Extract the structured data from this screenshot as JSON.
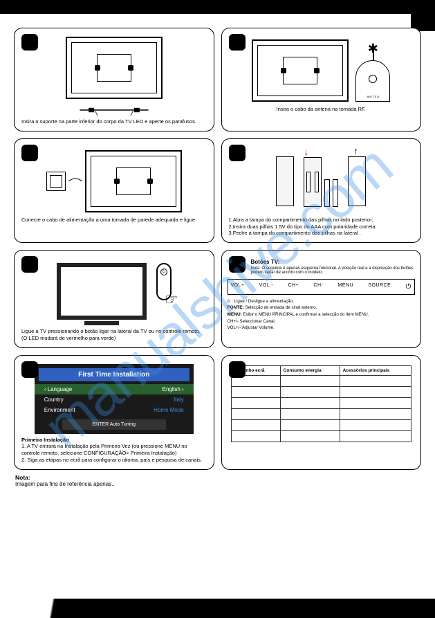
{
  "panels": {
    "p1": {
      "caption": "Insira o suporte na parte inferior do corpo da TV LED e aperte os parafusos."
    },
    "p2": {
      "caption": "Insira o cabo da antena na tomada RF.",
      "ant_label": "ANT 75 Ω"
    },
    "p3": {
      "caption": "Conecte o cabo de alimentação a uma tomada de parede adequada e ligue."
    },
    "p4": {
      "line1": "1.Abra a tampa do compartimento das pilhas no lado posterior;",
      "line2": "2.Insira duas pilhas 1.5V do tipo do AAA com polaridade correta.",
      "line3": "3.Feche a tampa do compartimento das pilhas na lateral ."
    },
    "p5": {
      "caption": "Ligue a TV pressionando o botão ligar na lateral da TV ou no controle remoto. (O LED mudará de vermelho para verde)"
    },
    "p6": {
      "title": "Botões TV:",
      "note": "Nota: O seguinte é apenas esquema funcional. A posição real e a disposição dos botões podem variar de acordo com o modelo.",
      "buttons": [
        "VOL+",
        "VOL -",
        "CH+",
        "CH-",
        "MENU",
        "SOURCE",
        "⏻"
      ],
      "def_power": "⏻ : Ligue / Desligue a alimentação.",
      "def_fonte_l": "FONTE:",
      "def_fonte": " Selecção de entrada de sinal externo.",
      "def_menu_l": "MENU:",
      "def_menu": " Exibir o MENU PRINCIPAL e confirmar a selecção do item MENU.",
      "def_ch": "CH+/-:Seleccionar  Canal.",
      "def_vol": "VOL+/-:Adjustar Volume."
    },
    "p7": {
      "osd_title": "First Time Installation",
      "rows": [
        {
          "label": "Language",
          "value": "English"
        },
        {
          "label": "Country",
          "value": "Italy"
        },
        {
          "label": "Environment",
          "value": "Home Mode"
        }
      ],
      "osd_foot": "ENTER  Auto Tuning",
      "sub_title": "Primeira Instalação",
      "step1": "1. A TV entrará na Instalação pela Primeira Vez (ou pressione MENU no controle remoto, selecione CONFIGURAÇÃO> Primeira Instalação)",
      "step2": "2. Siga as etapas no ecrã para configurar o idioma, país e pesquisa de canais."
    },
    "p8": {
      "headers": [
        "Tamanho ecrã",
        "Consumo energia",
        "Acessórios principais"
      ],
      "row_count": 6
    }
  },
  "footer": {
    "note_label": "Nota:",
    "note_text": "Imagem para fins de referência apenas.."
  },
  "watermark": "manualshive.com"
}
